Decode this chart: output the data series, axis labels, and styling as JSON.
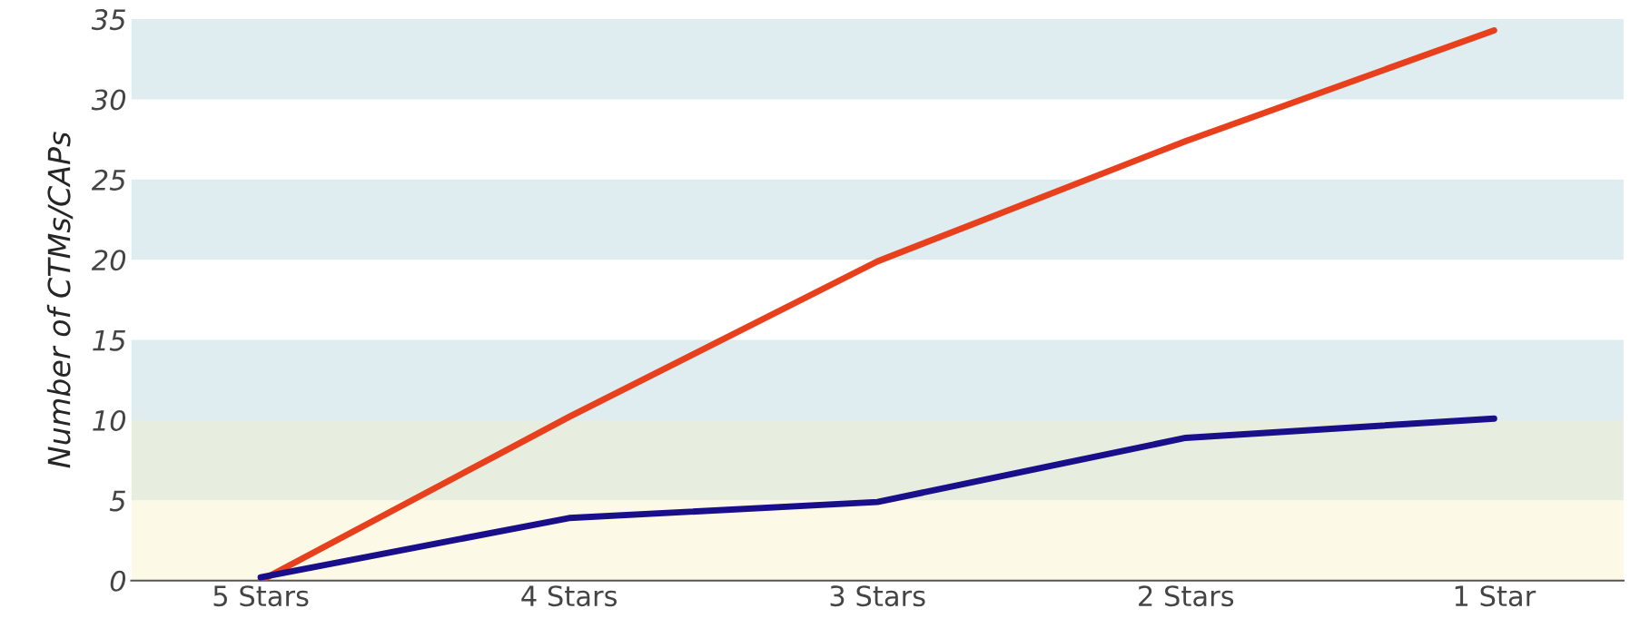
{
  "chart_data": {
    "type": "line",
    "ylabel": "Number of CTMs/CAPs",
    "categories": [
      "5 Stars",
      "4 Stars",
      "3 Stars",
      "2 Stars",
      "1 Star"
    ],
    "series": [
      {
        "color": "#e8401c",
        "values": [
          0,
          10.2,
          19.9,
          27.4,
          34.3
        ]
      },
      {
        "color": "#1a0f8a",
        "values": [
          0.2,
          3.9,
          4.9,
          8.9,
          10.1
        ]
      }
    ],
    "ylim": [
      0,
      35
    ],
    "yticks": [
      0,
      5,
      10,
      15,
      20,
      25,
      30,
      35
    ],
    "grid": false,
    "marker": "none",
    "line_style": "solid",
    "bands": [
      {
        "axis": "y",
        "from": 0,
        "to": 5,
        "color": "#fdf9e7"
      },
      {
        "axis": "y",
        "from": 5,
        "to": 10,
        "color": "#e8eedf"
      },
      {
        "axis": "y",
        "from": 10,
        "to": 15,
        "color": "#dfedf0"
      },
      {
        "axis": "y",
        "from": 20,
        "to": 25,
        "color": "#dfedf0"
      },
      {
        "axis": "y",
        "from": 30,
        "to": 35,
        "color": "#dfedf0"
      }
    ]
  }
}
